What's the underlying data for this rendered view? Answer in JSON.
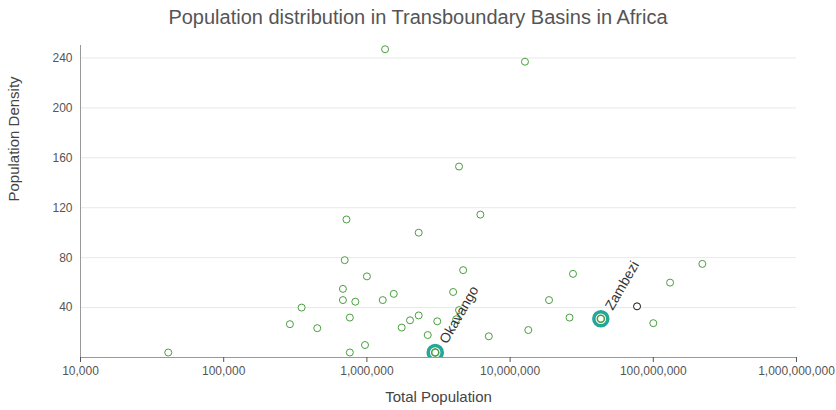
{
  "chart_data": {
    "type": "scatter",
    "title": "Population distribution in Transboundary Basins in Africa",
    "x_label": "Total Population",
    "y_label": "Population Density",
    "log": "x",
    "grid": true,
    "marker": "circle",
    "color": "#4a9e3f",
    "x": [
      41000,
      1340000,
      12700000,
      4400000,
      6200000,
      720000,
      2300000,
      700000,
      4700000,
      1000000,
      27500000,
      220000000,
      131000000,
      680000,
      680000,
      4000000,
      1540000,
      1290000,
      830000,
      350000,
      18700000,
      77000000,
      4400000,
      4200000,
      2300000,
      2000000,
      760000,
      290000,
      450000,
      3100000,
      1750000,
      26000000,
      100000000,
      13400000,
      2660000,
      7100000,
      970000,
      760000,
      3000000,
      43000000
    ],
    "values": [
      4,
      247,
      237,
      153,
      114.5,
      110.6,
      100,
      78,
      70,
      65,
      67,
      75,
      60,
      55,
      46,
      52.5,
      51,
      46,
      44.7,
      40,
      46,
      41,
      38,
      30.6,
      33.7,
      29.8,
      32,
      26.7,
      23.5,
      29,
      24,
      32,
      27.5,
      22,
      18,
      17,
      10,
      4,
      4,
      31
    ],
    "colors": [
      "#4a9e3f",
      "#4a9e3f",
      "#4a9e3f",
      "#4a9e3f",
      "#4a9e3f",
      "#4a9e3f",
      "#4a9e3f",
      "#4a9e3f",
      "#4a9e3f",
      "#4a9e3f",
      "#4a9e3f",
      "#4a9e3f",
      "#4a9e3f",
      "#4a9e3f",
      "#4a9e3f",
      "#4a9e3f",
      "#4a9e3f",
      "#4a9e3f",
      "#4a9e3f",
      "#4a9e3f",
      "#4a9e3f",
      "#111111",
      "#4a9e3f",
      "#4a9e3f",
      "#4a9e3f",
      "#4a9e3f",
      "#4a9e3f",
      "#4a9e3f",
      "#4a9e3f",
      "#4a9e3f",
      "#4a9e3f",
      "#4a9e3f",
      "#4a9e3f",
      "#4a9e3f",
      "#4a9e3f",
      "#4a9e3f",
      "#4a9e3f",
      "#4a9e3f",
      "#4a9e3f",
      "#4a9e3f"
    ],
    "annotations": [
      {
        "text": "Okavango",
        "x": 3000000,
        "y": 4
      },
      {
        "text": "Zambezi",
        "x": 43000000,
        "y": 31
      }
    ],
    "xlim": [
      10000,
      1000000000
    ],
    "xticks": [
      {
        "value": 10000,
        "label": "10,000"
      },
      {
        "value": 100000,
        "label": "100,000"
      },
      {
        "value": 1000000,
        "label": "1,000,000"
      },
      {
        "value": 10000000,
        "label": "10,000,000"
      },
      {
        "value": 100000000,
        "label": "100,000,000"
      },
      {
        "value": 1000000000,
        "label": "1,000,000,000"
      }
    ],
    "ylim": [
      0,
      250
    ],
    "yticks": [
      40,
      80,
      120,
      160,
      200,
      240
    ]
  }
}
